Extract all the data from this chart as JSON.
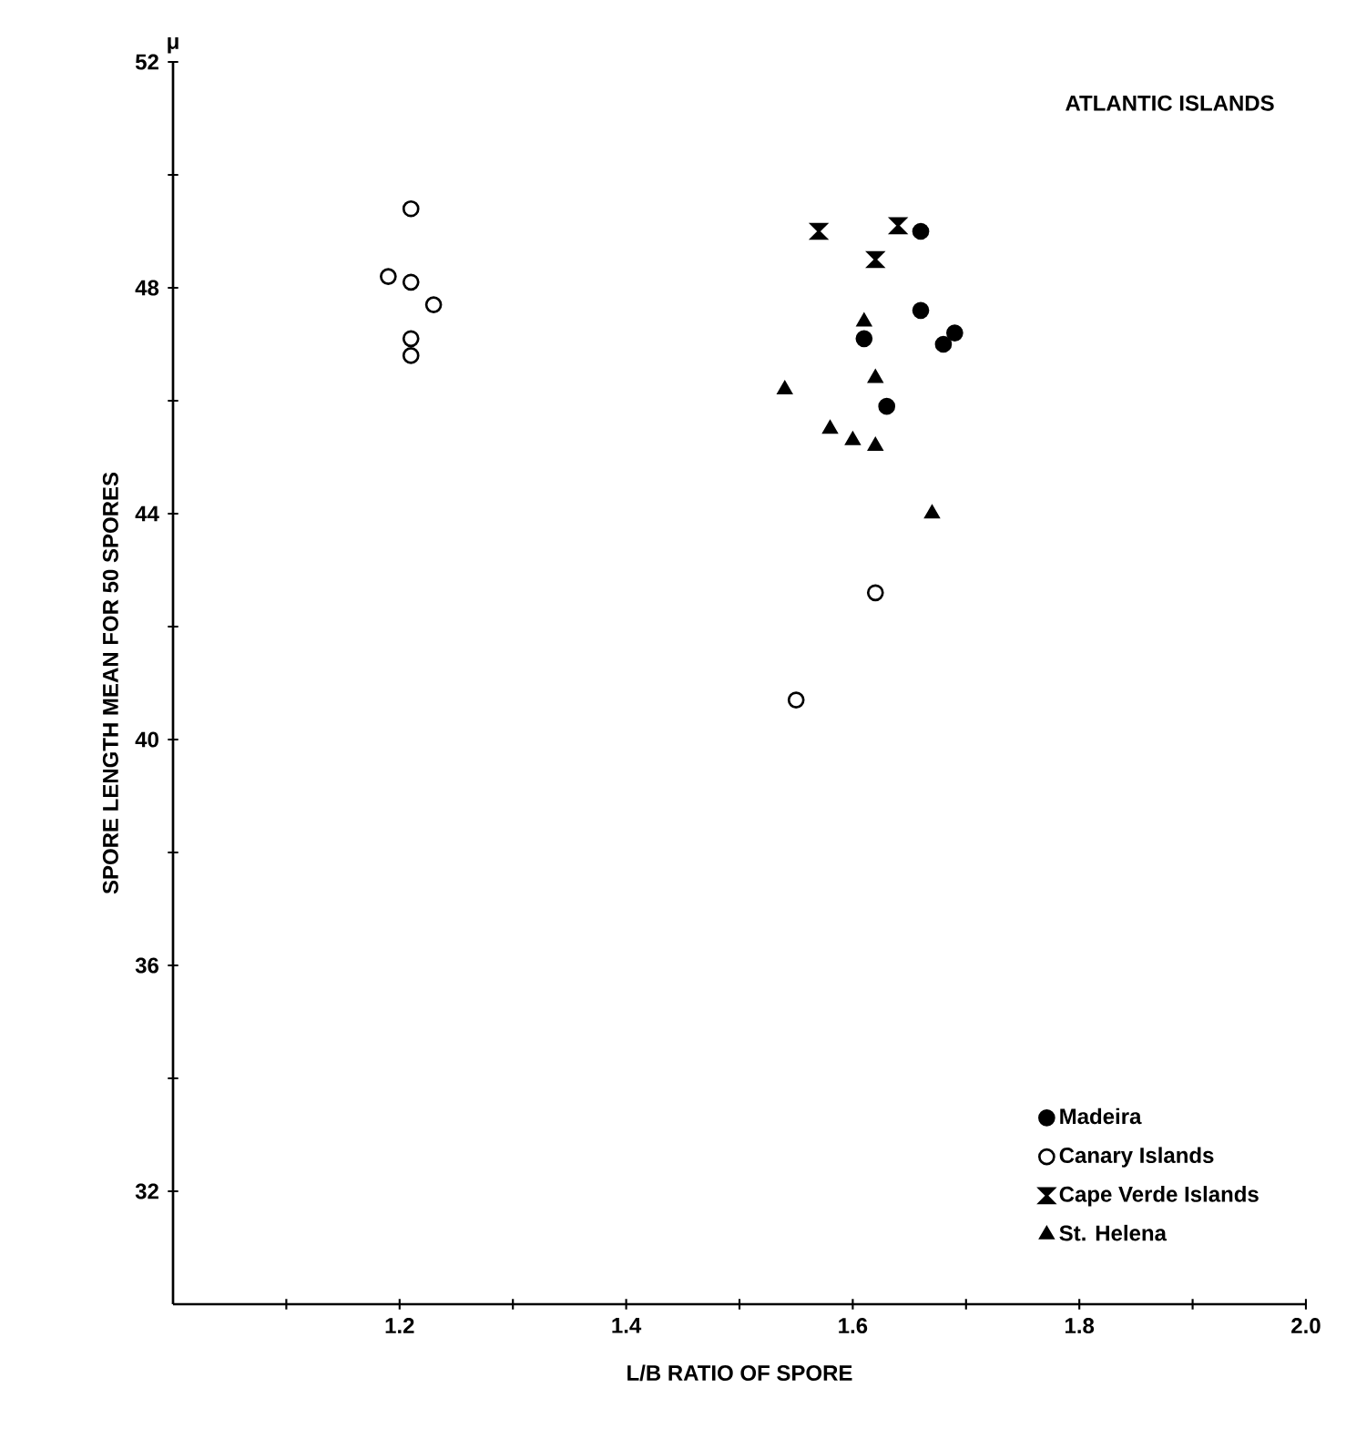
{
  "chart_data": {
    "type": "scatter",
    "title": "ATLANTIC ISLANDS",
    "xlabel": "L/B RATIO OF SPORE",
    "ylabel": "SPORE LENGTH  MEAN FOR 50 SPORES",
    "annotations": [
      "μ"
    ],
    "xlim": [
      1.0,
      2.0
    ],
    "ylim": [
      30,
      52
    ],
    "xticks": [
      {
        "value": 1.1,
        "label": null
      },
      {
        "value": 1.2,
        "label": "1.2"
      },
      {
        "value": 1.3,
        "label": null
      },
      {
        "value": 1.4,
        "label": "1.4"
      },
      {
        "value": 1.5,
        "label": null
      },
      {
        "value": 1.6,
        "label": "1.6"
      },
      {
        "value": 1.7,
        "label": null
      },
      {
        "value": 1.8,
        "label": "1.8"
      },
      {
        "value": 1.9,
        "label": null
      },
      {
        "value": 2.0,
        "label": "2.0"
      }
    ],
    "yticks": [
      32,
      {
        "value": 34,
        "label": null
      },
      36,
      {
        "value": 38,
        "label": null
      },
      40,
      {
        "value": 42,
        "label": null
      },
      44,
      {
        "value": 46,
        "label": null
      },
      48,
      {
        "value": 50,
        "label": null
      },
      52
    ],
    "grid": false,
    "legend": "bottom right",
    "series": [
      {
        "name": "Madeira",
        "color": "#000000",
        "marker": "circle",
        "x": [
          1.66,
          1.66,
          1.69,
          1.68,
          1.61,
          1.63
        ],
        "values": [
          49.0,
          47.6,
          47.2,
          47.0,
          47.1,
          45.9
        ]
      },
      {
        "name": "Canary Islands",
        "color": "#000000",
        "marker": "circle-open",
        "x": [
          1.21,
          1.19,
          1.21,
          1.23,
          1.21,
          1.21,
          1.62,
          1.55
        ],
        "values": [
          49.4,
          48.2,
          48.1,
          47.7,
          47.1,
          46.8,
          42.6,
          40.7
        ]
      },
      {
        "name": "Cape Verde Islands",
        "color": "#000000",
        "marker": "diamond",
        "x": [
          1.57,
          1.64,
          1.62
        ],
        "values": [
          49.0,
          49.1,
          48.5
        ]
      },
      {
        "name": "St. Helena",
        "color": "#000000",
        "marker": "triangle",
        "x": [
          1.61,
          1.62,
          1.54,
          1.58,
          1.6,
          1.62,
          1.67
        ],
        "values": [
          47.4,
          46.4,
          46.2,
          45.5,
          45.3,
          45.2,
          44.0
        ]
      }
    ]
  }
}
